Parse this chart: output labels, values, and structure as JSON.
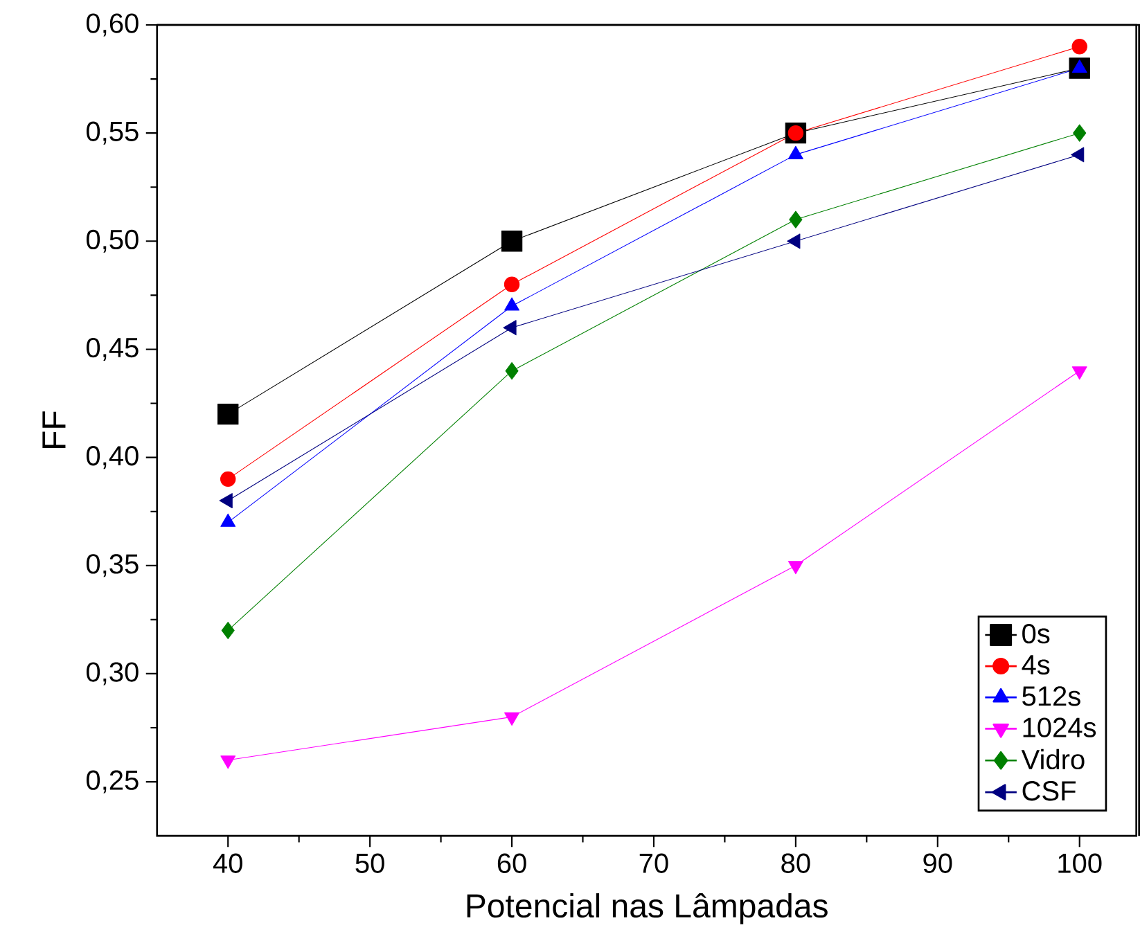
{
  "chart_data": {
    "type": "line",
    "xlabel": "Potencial nas Lâmpadas",
    "ylabel": "FF",
    "x": [
      40,
      60,
      80,
      100
    ],
    "series": [
      {
        "name": "0s",
        "color": "#000000",
        "marker": "square",
        "values": [
          0.42,
          0.5,
          0.55,
          0.58
        ]
      },
      {
        "name": "4s",
        "color": "#ff0000",
        "marker": "circle",
        "values": [
          0.39,
          0.48,
          0.55,
          0.59
        ]
      },
      {
        "name": "512s",
        "color": "#0000ff",
        "marker": "triangle",
        "values": [
          0.37,
          0.47,
          0.54,
          0.58
        ]
      },
      {
        "name": "1024s",
        "color": "#ff00ff",
        "marker": "triangle-down",
        "values": [
          0.26,
          0.28,
          0.35,
          0.44
        ]
      },
      {
        "name": "Vidro",
        "color": "#008000",
        "marker": "diamond",
        "values": [
          0.32,
          0.44,
          0.51,
          0.55
        ]
      },
      {
        "name": "CSF",
        "color": "#000080",
        "marker": "triangle-left",
        "values": [
          0.38,
          0.46,
          0.5,
          0.54
        ]
      }
    ],
    "xlim": [
      35,
      104
    ],
    "ylim": [
      0.225,
      0.6
    ],
    "xticks": [
      40,
      50,
      60,
      70,
      80,
      90,
      100
    ],
    "yticks": [
      {
        "value": 0.25,
        "label": "0,25"
      },
      {
        "value": 0.3,
        "label": "0,30"
      },
      {
        "value": 0.35,
        "label": "0,35"
      },
      {
        "value": 0.4,
        "label": "0,40"
      },
      {
        "value": 0.45,
        "label": "0,45"
      },
      {
        "value": 0.5,
        "label": "0,50"
      },
      {
        "value": 0.55,
        "label": "0,55"
      },
      {
        "value": 0.6,
        "label": "0,60"
      }
    ],
    "grid": false,
    "legend": "bottom right",
    "line_style": "solid"
  }
}
